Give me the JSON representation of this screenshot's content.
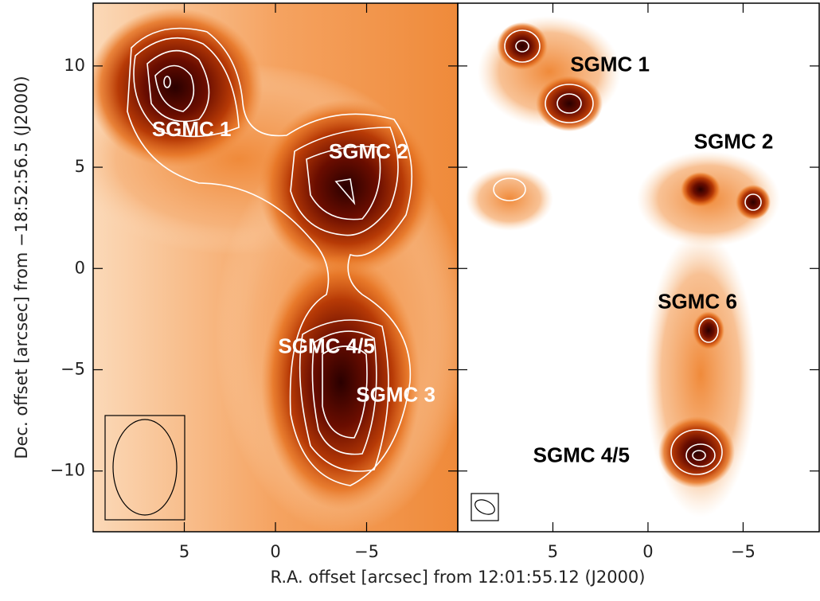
{
  "chart_data": [
    {
      "type": "image",
      "xlabel": "R.A. offset [arcsec] from 12:01:55.12 (J2000)",
      "ylabel": "Dec. offset [arcsec] from −18:52:56.5 (J2000)",
      "xlim": [
        10,
        -10
      ],
      "ylim": [
        -13,
        13.1
      ],
      "xticks": [
        5,
        0,
        {
          "value": -5,
          "label": "−5"
        }
      ],
      "yticks": [
        10,
        5,
        0,
        {
          "value": -5,
          "label": "−5"
        },
        {
          "value": -10,
          "label": "−10"
        }
      ],
      "annotation_color": "#ffffff",
      "annotations": [
        {
          "text": "SGMC 1",
          "x": 4.6,
          "y": 6.8
        },
        {
          "text": "SGMC 2",
          "x": -5.1,
          "y": 5.7
        },
        {
          "text": "SGMC 4/5",
          "x": -2.8,
          "y": -3.9
        },
        {
          "text": "SGMC 3",
          "x": -6.6,
          "y": -6.3
        }
      ]
    },
    {
      "type": "image",
      "xlim": [
        10,
        -9
      ],
      "ylim": [
        -13,
        13.1
      ],
      "xticks": [
        5,
        0,
        {
          "value": -5,
          "label": "−5"
        }
      ],
      "annotation_color": "#000000",
      "annotations": [
        {
          "text": "SGMC 1",
          "x": 2.0,
          "y": 10
        },
        {
          "text": "SGMC 2",
          "x": -4.5,
          "y": 6.2
        },
        {
          "text": "SGMC 6",
          "x": -2.6,
          "y": -1.7
        },
        {
          "text": "SGMC 4/5",
          "x": 3.5,
          "y": -9.3
        }
      ]
    }
  ]
}
